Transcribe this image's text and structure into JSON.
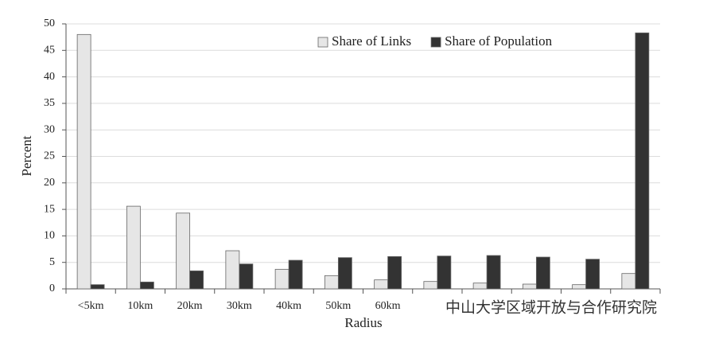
{
  "chart_data": {
    "type": "bar",
    "x_label": "Radius",
    "y_label": "Percent",
    "categories": [
      "<5km",
      "10km",
      "20km",
      "30km",
      "40km",
      "50km",
      "60km",
      null,
      null,
      null,
      null,
      null
    ],
    "series": [
      {
        "name": "Share of Links",
        "color": "#e6e6e6",
        "values": [
          48,
          15.6,
          14.3,
          7.2,
          3.7,
          2.5,
          1.7,
          1.4,
          1.1,
          0.9,
          0.8,
          2.9
        ]
      },
      {
        "name": "Share of Population",
        "color": "#333333",
        "values": [
          0.8,
          1.3,
          3.4,
          4.7,
          5.4,
          5.9,
          6.1,
          6.2,
          6.3,
          6.0,
          5.6,
          48.3
        ]
      }
    ],
    "ylim": [
      0,
      50
    ],
    "yticks": [
      0,
      5,
      10,
      15,
      20,
      25,
      30,
      35,
      40,
      45,
      50
    ],
    "grid": true,
    "legend": "top-right",
    "watermark": "中山大学区域开放与合作研究院"
  }
}
